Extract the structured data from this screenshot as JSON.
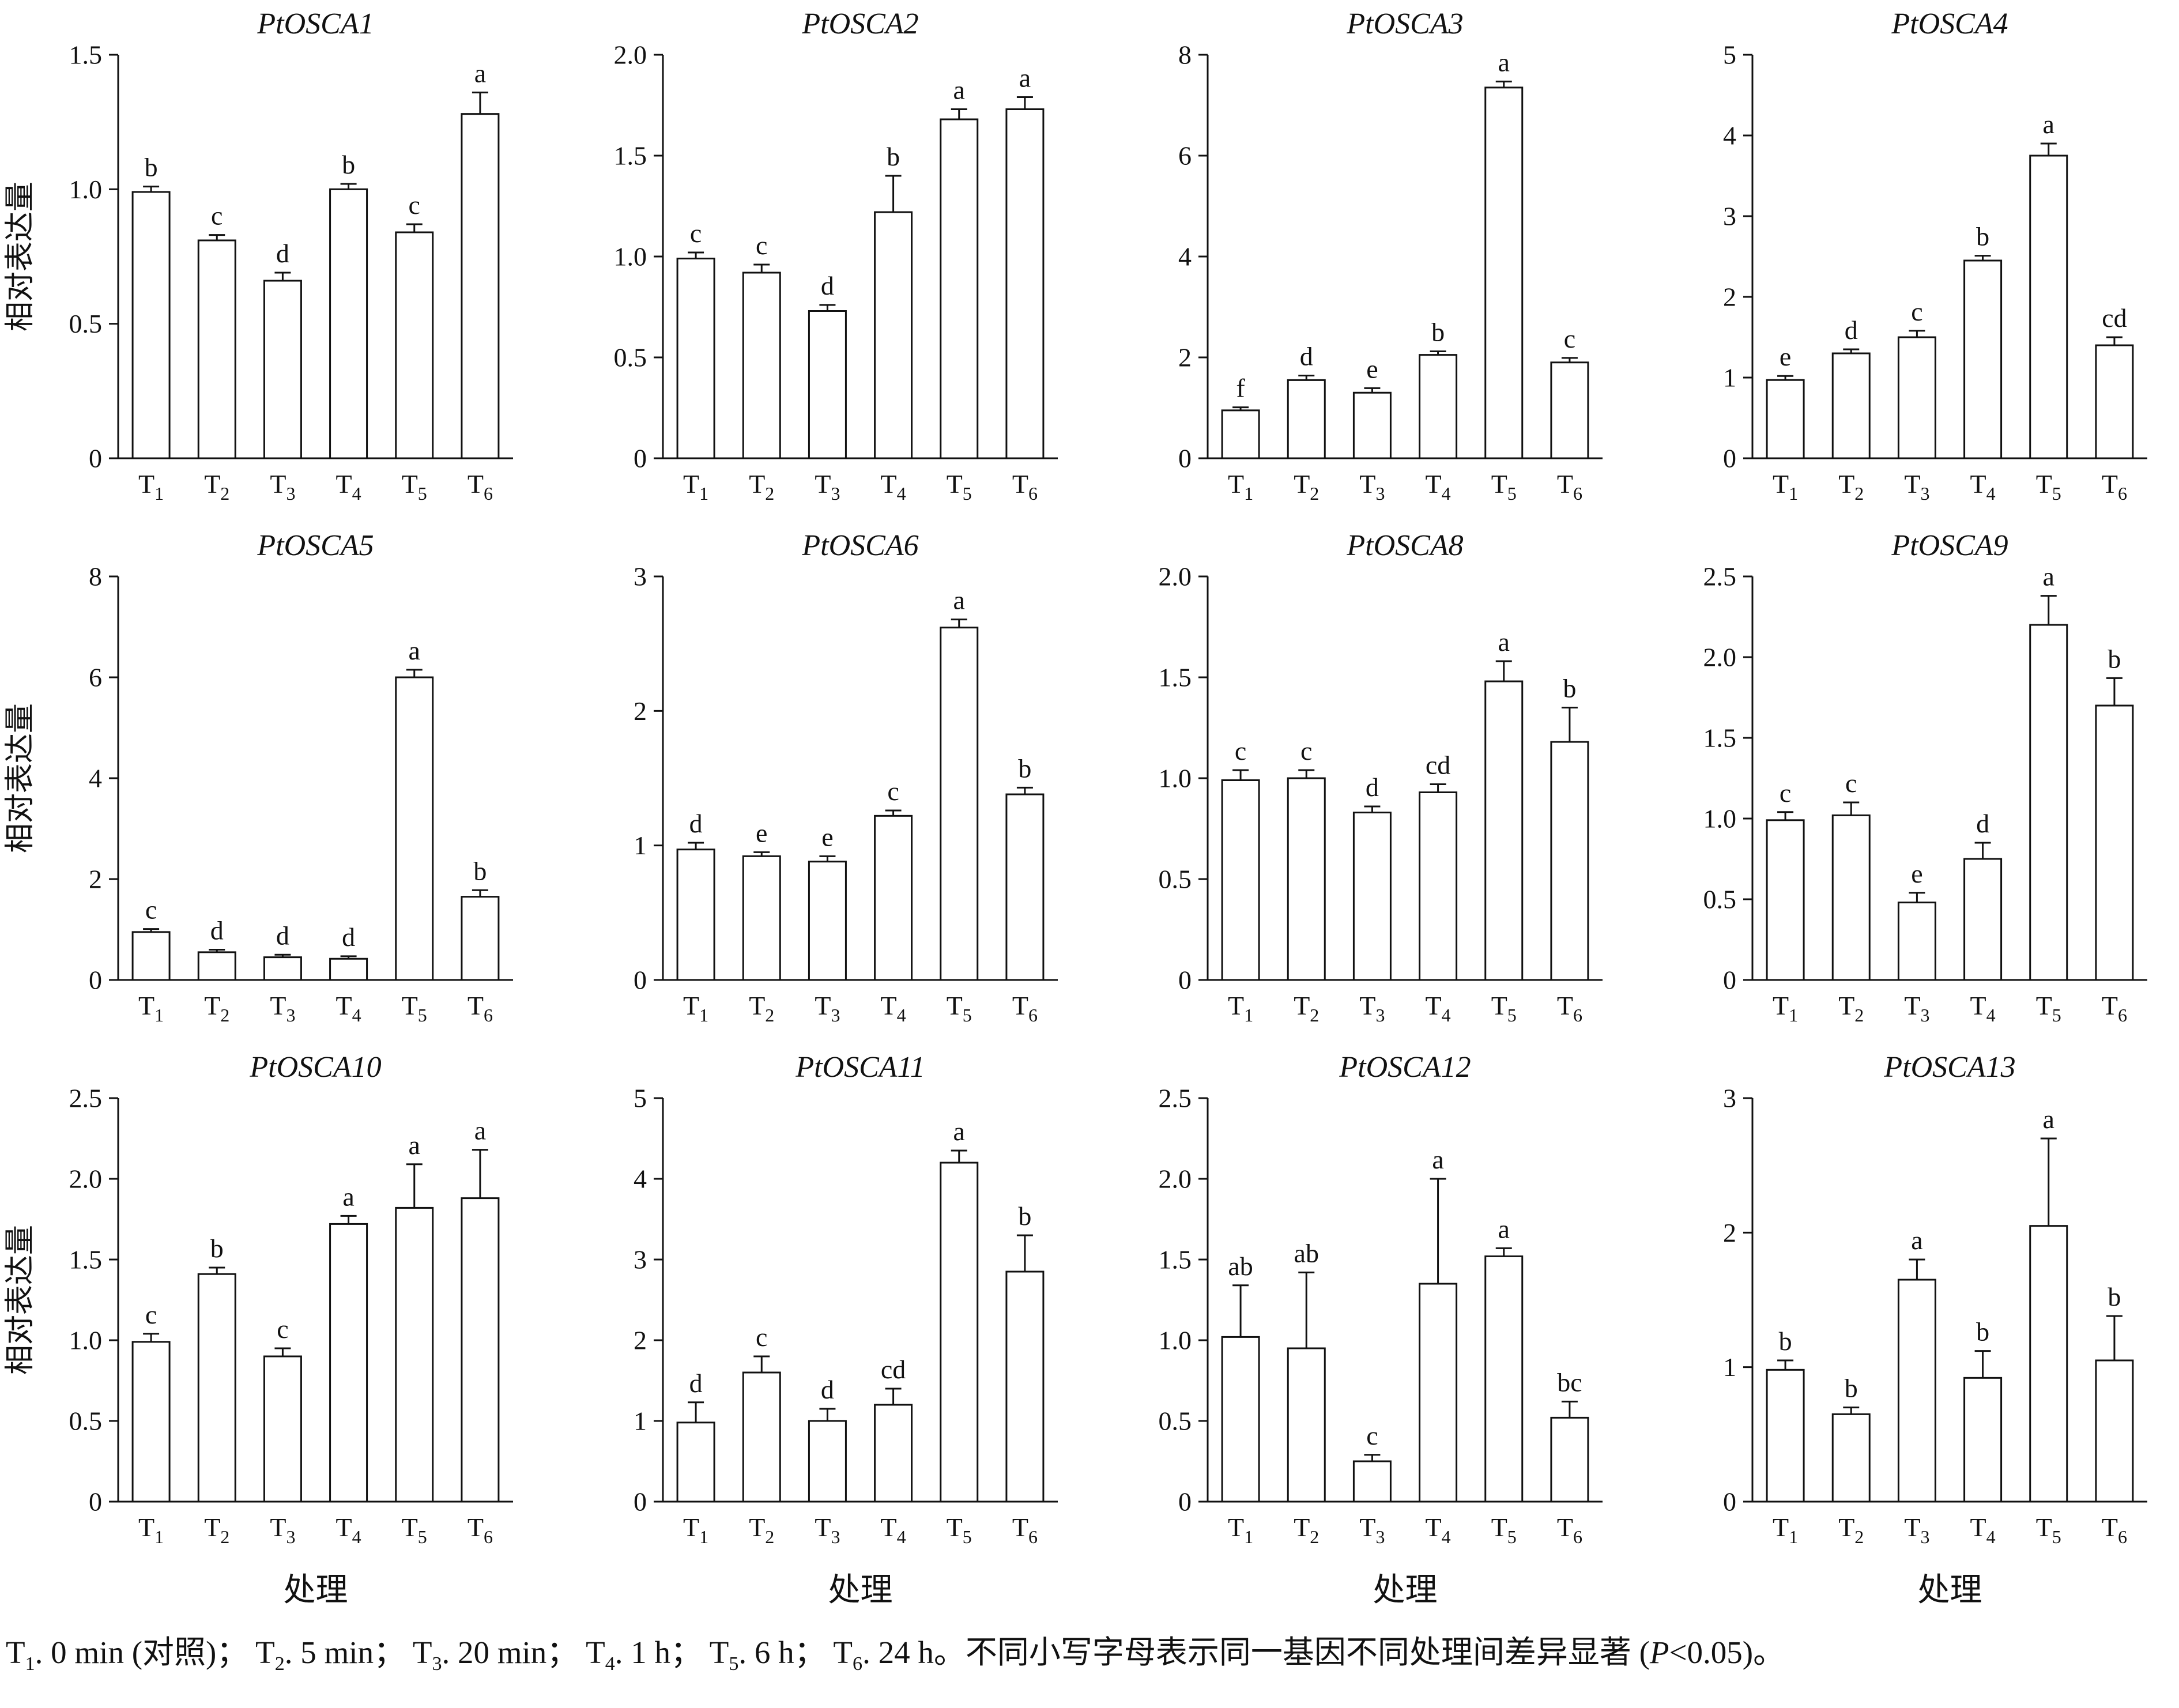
{
  "figure": {
    "ylabel": "相对表达量",
    "xlabel": "处理"
  },
  "chart_data": {
    "type": "bar",
    "categories": [
      "T1",
      "T2",
      "T3",
      "T4",
      "T5",
      "T6"
    ],
    "ylabel": "相对表达量",
    "xlabel": "处理",
    "grid": false,
    "legend": false,
    "charts": [
      {
        "title": "PtOSCA1",
        "ymax": 1.5,
        "yticks": [
          "0",
          "0.5",
          "1.0",
          "1.5"
        ],
        "values": [
          0.99,
          0.81,
          0.66,
          1.0,
          0.84,
          1.28
        ],
        "errors": [
          0.02,
          0.02,
          0.03,
          0.02,
          0.03,
          0.08
        ],
        "letters": [
          "b",
          "c",
          "d",
          "b",
          "c",
          "a"
        ]
      },
      {
        "title": "PtOSCA2",
        "ymax": 2.0,
        "yticks": [
          "0",
          "0.5",
          "1.0",
          "1.5",
          "2.0"
        ],
        "values": [
          0.99,
          0.92,
          0.73,
          1.22,
          1.68,
          1.73
        ],
        "errors": [
          0.03,
          0.04,
          0.03,
          0.18,
          0.05,
          0.06
        ],
        "letters": [
          "c",
          "c",
          "d",
          "b",
          "a",
          "a"
        ]
      },
      {
        "title": "PtOSCA3",
        "ymax": 8,
        "yticks": [
          "0",
          "2",
          "4",
          "6",
          "8"
        ],
        "values": [
          0.95,
          1.55,
          1.3,
          2.05,
          7.35,
          1.9
        ],
        "errors": [
          0.06,
          0.09,
          0.09,
          0.07,
          0.12,
          0.09
        ],
        "letters": [
          "f",
          "d",
          "e",
          "b",
          "a",
          "c"
        ]
      },
      {
        "title": "PtOSCA4",
        "ymax": 5,
        "yticks": [
          "0",
          "1",
          "2",
          "3",
          "4",
          "5"
        ],
        "values": [
          0.97,
          1.3,
          1.5,
          2.45,
          3.75,
          1.4
        ],
        "errors": [
          0.05,
          0.05,
          0.08,
          0.06,
          0.15,
          0.1
        ],
        "letters": [
          "e",
          "d",
          "c",
          "b",
          "a",
          "cd"
        ]
      },
      {
        "title": "PtOSCA5",
        "ymax": 8,
        "yticks": [
          "0",
          "2",
          "4",
          "6",
          "8"
        ],
        "values": [
          0.95,
          0.55,
          0.45,
          0.42,
          6.0,
          1.65
        ],
        "errors": [
          0.06,
          0.05,
          0.05,
          0.05,
          0.15,
          0.13
        ],
        "letters": [
          "c",
          "d",
          "d",
          "d",
          "a",
          "b"
        ]
      },
      {
        "title": "PtOSCA6",
        "ymax": 3,
        "yticks": [
          "0",
          "1",
          "2",
          "3"
        ],
        "values": [
          0.97,
          0.92,
          0.88,
          1.22,
          2.62,
          1.38
        ],
        "errors": [
          0.05,
          0.03,
          0.04,
          0.04,
          0.06,
          0.05
        ],
        "letters": [
          "d",
          "e",
          "e",
          "c",
          "a",
          "b"
        ]
      },
      {
        "title": "PtOSCA8",
        "ymax": 2.0,
        "yticks": [
          "0",
          "0.5",
          "1.0",
          "1.5",
          "2.0"
        ],
        "values": [
          0.99,
          1.0,
          0.83,
          0.93,
          1.48,
          1.18
        ],
        "errors": [
          0.05,
          0.04,
          0.03,
          0.04,
          0.1,
          0.17
        ],
        "letters": [
          "c",
          "c",
          "d",
          "cd",
          "a",
          "b"
        ]
      },
      {
        "title": "PtOSCA9",
        "ymax": 2.5,
        "yticks": [
          "0",
          "0.5",
          "1.0",
          "1.5",
          "2.0",
          "2.5"
        ],
        "values": [
          0.99,
          1.02,
          0.48,
          0.75,
          2.2,
          1.7
        ],
        "errors": [
          0.05,
          0.08,
          0.06,
          0.1,
          0.18,
          0.17
        ],
        "letters": [
          "c",
          "c",
          "e",
          "d",
          "a",
          "b"
        ]
      },
      {
        "title": "PtOSCA10",
        "ymax": 2.5,
        "yticks": [
          "0",
          "0.5",
          "1.0",
          "1.5",
          "2.0",
          "2.5"
        ],
        "values": [
          0.99,
          1.41,
          0.9,
          1.72,
          1.82,
          1.88
        ],
        "errors": [
          0.05,
          0.04,
          0.05,
          0.05,
          0.27,
          0.3
        ],
        "letters": [
          "c",
          "b",
          "c",
          "a",
          "a",
          "a"
        ]
      },
      {
        "title": "PtOSCA11",
        "ymax": 5,
        "yticks": [
          "0",
          "1",
          "2",
          "3",
          "4",
          "5"
        ],
        "values": [
          0.98,
          1.6,
          1.0,
          1.2,
          4.2,
          2.85
        ],
        "errors": [
          0.25,
          0.2,
          0.15,
          0.2,
          0.15,
          0.45
        ],
        "letters": [
          "d",
          "c",
          "d",
          "cd",
          "a",
          "b"
        ]
      },
      {
        "title": "PtOSCA12",
        "ymax": 2.5,
        "yticks": [
          "0",
          "0.5",
          "1.0",
          "1.5",
          "2.0",
          "2.5"
        ],
        "values": [
          1.02,
          0.95,
          0.25,
          1.35,
          1.52,
          0.52
        ],
        "errors": [
          0.32,
          0.47,
          0.04,
          0.65,
          0.05,
          0.1
        ],
        "letters": [
          "ab",
          "ab",
          "c",
          "a",
          "a",
          "bc"
        ]
      },
      {
        "title": "PtOSCA13",
        "ymax": 3,
        "yticks": [
          "0",
          "1",
          "2",
          "3"
        ],
        "values": [
          0.98,
          0.65,
          1.65,
          0.92,
          2.05,
          1.05
        ],
        "errors": [
          0.07,
          0.05,
          0.15,
          0.2,
          0.65,
          0.33
        ],
        "letters": [
          "b",
          "b",
          "a",
          "b",
          "a",
          "b"
        ]
      }
    ]
  },
  "caption": {
    "segments": [
      {
        "text": "T"
      },
      {
        "sub": "1"
      },
      {
        "text": ". 0 min (对照)；  "
      },
      {
        "text": "T"
      },
      {
        "sub": "2"
      },
      {
        "text": ". 5 min；  "
      },
      {
        "text": "T"
      },
      {
        "sub": "3"
      },
      {
        "text": ". 20 min；  "
      },
      {
        "text": "T"
      },
      {
        "sub": "4"
      },
      {
        "text": ". 1 h；  "
      },
      {
        "text": "T"
      },
      {
        "sub": "5"
      },
      {
        "text": ". 6 h；  "
      },
      {
        "text": "T"
      },
      {
        "sub": "6"
      },
      {
        "text": ". 24 h。"
      },
      {
        "text": "不同小写字母表示同一基因不同处理间差异显著 ("
      },
      {
        "text": "P",
        "italic": true
      },
      {
        "text": "<0.05)。"
      }
    ]
  },
  "style": {
    "axis_color": "#111111",
    "bar_fill": "#ffffff",
    "bar_stroke": "#111111",
    "background": "#ffffff"
  }
}
